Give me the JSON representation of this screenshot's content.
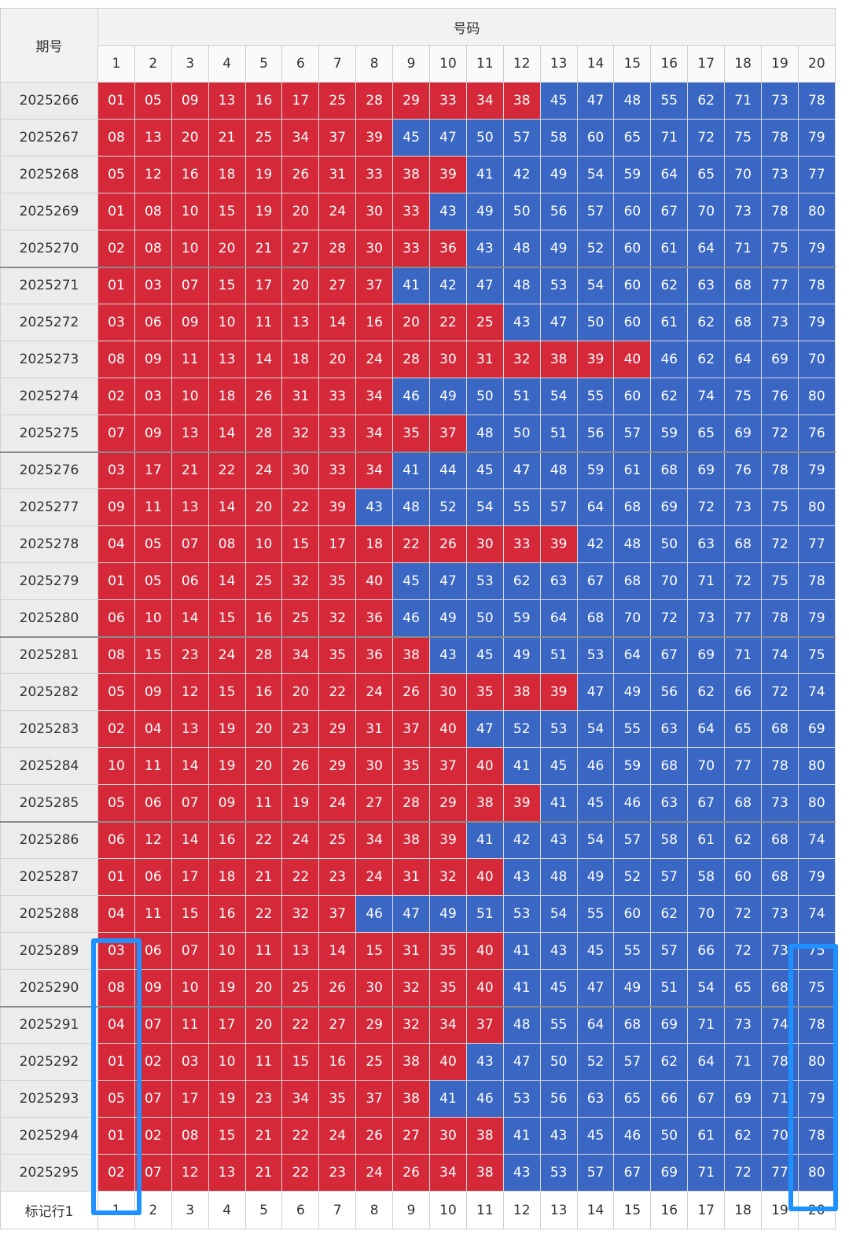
{
  "header": {
    "issue_label": "期号",
    "numbers_label": "号码"
  },
  "columns": [
    "1",
    "2",
    "3",
    "4",
    "5",
    "6",
    "7",
    "8",
    "9",
    "10",
    "11",
    "12",
    "13",
    "14",
    "15",
    "16",
    "17",
    "18",
    "19",
    "20"
  ],
  "colors": {
    "red": "#d5293a",
    "blue": "#3a66c4",
    "highlight": "#1e90ff"
  },
  "rows": [
    {
      "issue": "2025266",
      "nums": [
        "01",
        "05",
        "09",
        "13",
        "16",
        "17",
        "25",
        "28",
        "29",
        "33",
        "34",
        "38",
        "45",
        "47",
        "48",
        "55",
        "62",
        "71",
        "73",
        "78"
      ],
      "red": 12
    },
    {
      "issue": "2025267",
      "nums": [
        "08",
        "13",
        "20",
        "21",
        "25",
        "34",
        "37",
        "39",
        "45",
        "47",
        "50",
        "57",
        "58",
        "60",
        "65",
        "71",
        "72",
        "75",
        "78",
        "79"
      ],
      "red": 8
    },
    {
      "issue": "2025268",
      "nums": [
        "05",
        "12",
        "16",
        "18",
        "19",
        "26",
        "31",
        "33",
        "38",
        "39",
        "41",
        "42",
        "49",
        "54",
        "59",
        "64",
        "65",
        "70",
        "73",
        "77"
      ],
      "red": 10
    },
    {
      "issue": "2025269",
      "nums": [
        "01",
        "08",
        "10",
        "15",
        "19",
        "20",
        "24",
        "30",
        "33",
        "43",
        "49",
        "50",
        "56",
        "57",
        "60",
        "67",
        "70",
        "73",
        "78",
        "80"
      ],
      "red": 9
    },
    {
      "issue": "2025270",
      "nums": [
        "02",
        "08",
        "10",
        "20",
        "21",
        "27",
        "28",
        "30",
        "33",
        "36",
        "43",
        "48",
        "49",
        "52",
        "60",
        "61",
        "64",
        "71",
        "75",
        "79"
      ],
      "red": 10
    },
    {
      "issue": "2025271",
      "nums": [
        "01",
        "03",
        "07",
        "15",
        "17",
        "20",
        "27",
        "37",
        "41",
        "42",
        "47",
        "48",
        "53",
        "54",
        "60",
        "62",
        "63",
        "68",
        "77",
        "78"
      ],
      "red": 8
    },
    {
      "issue": "2025272",
      "nums": [
        "03",
        "06",
        "09",
        "10",
        "11",
        "13",
        "14",
        "16",
        "20",
        "22",
        "25",
        "43",
        "47",
        "50",
        "60",
        "61",
        "62",
        "68",
        "73",
        "79"
      ],
      "red": 11
    },
    {
      "issue": "2025273",
      "nums": [
        "08",
        "09",
        "11",
        "13",
        "14",
        "18",
        "20",
        "24",
        "28",
        "30",
        "31",
        "32",
        "38",
        "39",
        "40",
        "46",
        "62",
        "64",
        "69",
        "70"
      ],
      "red": 15
    },
    {
      "issue": "2025274",
      "nums": [
        "02",
        "03",
        "10",
        "18",
        "26",
        "31",
        "33",
        "34",
        "46",
        "49",
        "50",
        "51",
        "54",
        "55",
        "60",
        "62",
        "74",
        "75",
        "76",
        "80"
      ],
      "red": 8
    },
    {
      "issue": "2025275",
      "nums": [
        "07",
        "09",
        "13",
        "14",
        "28",
        "32",
        "33",
        "34",
        "35",
        "37",
        "48",
        "50",
        "51",
        "56",
        "57",
        "59",
        "65",
        "69",
        "72",
        "76"
      ],
      "red": 10
    },
    {
      "issue": "2025276",
      "nums": [
        "03",
        "17",
        "21",
        "22",
        "24",
        "30",
        "33",
        "34",
        "41",
        "44",
        "45",
        "47",
        "48",
        "59",
        "61",
        "68",
        "69",
        "76",
        "78",
        "79"
      ],
      "red": 8
    },
    {
      "issue": "2025277",
      "nums": [
        "09",
        "11",
        "13",
        "14",
        "20",
        "22",
        "39",
        "43",
        "48",
        "52",
        "54",
        "55",
        "57",
        "64",
        "68",
        "69",
        "72",
        "73",
        "75",
        "80"
      ],
      "red": 7
    },
    {
      "issue": "2025278",
      "nums": [
        "04",
        "05",
        "07",
        "08",
        "10",
        "15",
        "17",
        "18",
        "22",
        "26",
        "30",
        "33",
        "39",
        "42",
        "48",
        "50",
        "63",
        "68",
        "72",
        "77"
      ],
      "red": 13
    },
    {
      "issue": "2025279",
      "nums": [
        "01",
        "05",
        "06",
        "14",
        "25",
        "32",
        "35",
        "40",
        "45",
        "47",
        "53",
        "62",
        "63",
        "67",
        "68",
        "70",
        "71",
        "72",
        "75",
        "78"
      ],
      "red": 8
    },
    {
      "issue": "2025280",
      "nums": [
        "06",
        "10",
        "14",
        "15",
        "16",
        "25",
        "32",
        "36",
        "46",
        "49",
        "50",
        "59",
        "64",
        "68",
        "70",
        "72",
        "73",
        "77",
        "78",
        "79"
      ],
      "red": 8
    },
    {
      "issue": "2025281",
      "nums": [
        "08",
        "15",
        "23",
        "24",
        "28",
        "34",
        "35",
        "36",
        "38",
        "43",
        "45",
        "49",
        "51",
        "53",
        "64",
        "67",
        "69",
        "71",
        "74",
        "75"
      ],
      "red": 9
    },
    {
      "issue": "2025282",
      "nums": [
        "05",
        "09",
        "12",
        "15",
        "16",
        "20",
        "22",
        "24",
        "26",
        "30",
        "35",
        "38",
        "39",
        "47",
        "49",
        "56",
        "62",
        "66",
        "72",
        "74"
      ],
      "red": 13
    },
    {
      "issue": "2025283",
      "nums": [
        "02",
        "04",
        "13",
        "19",
        "20",
        "23",
        "29",
        "31",
        "37",
        "40",
        "47",
        "52",
        "53",
        "54",
        "55",
        "63",
        "64",
        "65",
        "68",
        "69"
      ],
      "red": 10
    },
    {
      "issue": "2025284",
      "nums": [
        "10",
        "11",
        "14",
        "19",
        "20",
        "26",
        "29",
        "30",
        "35",
        "37",
        "40",
        "41",
        "45",
        "46",
        "59",
        "68",
        "70",
        "77",
        "78",
        "80"
      ],
      "red": 11
    },
    {
      "issue": "2025285",
      "nums": [
        "05",
        "06",
        "07",
        "09",
        "11",
        "19",
        "24",
        "27",
        "28",
        "29",
        "38",
        "39",
        "41",
        "45",
        "46",
        "63",
        "67",
        "68",
        "73",
        "80"
      ],
      "red": 12
    },
    {
      "issue": "2025286",
      "nums": [
        "06",
        "12",
        "14",
        "16",
        "22",
        "24",
        "25",
        "34",
        "38",
        "39",
        "41",
        "42",
        "43",
        "54",
        "57",
        "58",
        "61",
        "62",
        "68",
        "74"
      ],
      "red": 10
    },
    {
      "issue": "2025287",
      "nums": [
        "01",
        "06",
        "17",
        "18",
        "21",
        "22",
        "23",
        "24",
        "31",
        "32",
        "40",
        "43",
        "48",
        "49",
        "52",
        "57",
        "58",
        "60",
        "68",
        "79"
      ],
      "red": 11
    },
    {
      "issue": "2025288",
      "nums": [
        "04",
        "11",
        "15",
        "16",
        "22",
        "32",
        "37",
        "46",
        "47",
        "49",
        "51",
        "53",
        "54",
        "55",
        "60",
        "62",
        "70",
        "72",
        "73",
        "74"
      ],
      "red": 7
    },
    {
      "issue": "2025289",
      "nums": [
        "03",
        "06",
        "07",
        "10",
        "11",
        "13",
        "14",
        "15",
        "31",
        "35",
        "40",
        "41",
        "43",
        "45",
        "55",
        "57",
        "66",
        "72",
        "73",
        "75"
      ],
      "red": 11
    },
    {
      "issue": "2025290",
      "nums": [
        "08",
        "09",
        "10",
        "19",
        "20",
        "25",
        "26",
        "30",
        "32",
        "35",
        "40",
        "41",
        "45",
        "47",
        "49",
        "51",
        "54",
        "65",
        "68",
        "75"
      ],
      "red": 11
    },
    {
      "issue": "2025291",
      "nums": [
        "04",
        "07",
        "11",
        "17",
        "20",
        "22",
        "27",
        "29",
        "32",
        "34",
        "37",
        "48",
        "55",
        "64",
        "68",
        "69",
        "71",
        "73",
        "74",
        "78"
      ],
      "red": 11
    },
    {
      "issue": "2025292",
      "nums": [
        "01",
        "02",
        "03",
        "10",
        "11",
        "15",
        "16",
        "25",
        "38",
        "40",
        "43",
        "47",
        "50",
        "52",
        "57",
        "62",
        "64",
        "71",
        "78",
        "80"
      ],
      "red": 10
    },
    {
      "issue": "2025293",
      "nums": [
        "05",
        "07",
        "17",
        "19",
        "23",
        "34",
        "35",
        "37",
        "38",
        "41",
        "46",
        "53",
        "56",
        "63",
        "65",
        "66",
        "67",
        "69",
        "71",
        "79"
      ],
      "red": 9
    },
    {
      "issue": "2025294",
      "nums": [
        "01",
        "02",
        "08",
        "15",
        "21",
        "22",
        "24",
        "26",
        "27",
        "30",
        "38",
        "41",
        "43",
        "45",
        "46",
        "50",
        "61",
        "62",
        "70",
        "78"
      ],
      "red": 11
    },
    {
      "issue": "2025295",
      "nums": [
        "02",
        "07",
        "12",
        "13",
        "21",
        "22",
        "23",
        "24",
        "26",
        "34",
        "38",
        "43",
        "53",
        "57",
        "67",
        "69",
        "71",
        "72",
        "77",
        "80"
      ],
      "red": 11
    }
  ],
  "footer": {
    "label": "标记行1",
    "cols": [
      "1",
      "2",
      "3",
      "4",
      "5",
      "6",
      "7",
      "8",
      "9",
      "10",
      "11",
      "12",
      "13",
      "14",
      "15",
      "16",
      "17",
      "18",
      "19",
      "20"
    ]
  }
}
